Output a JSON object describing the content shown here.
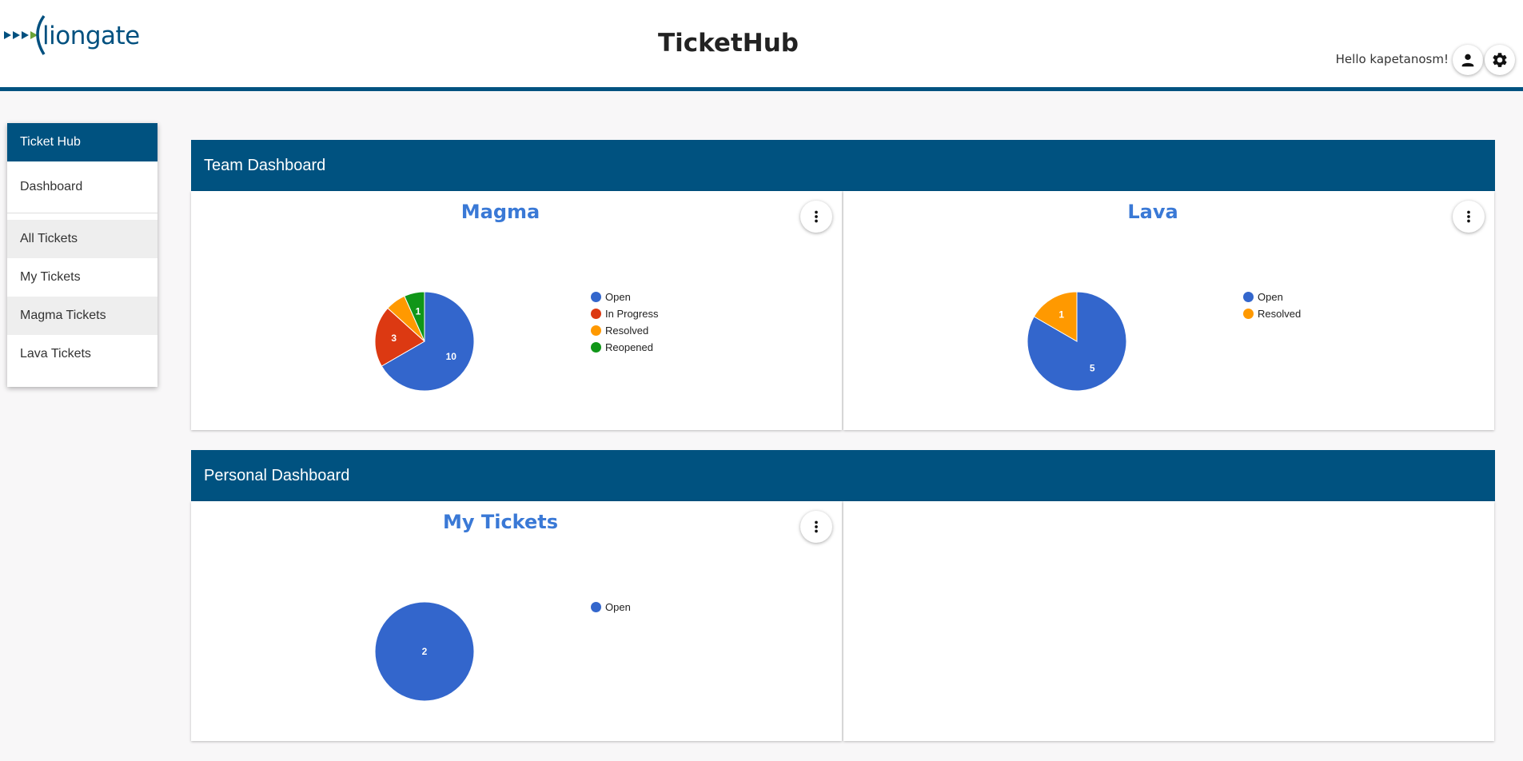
{
  "header": {
    "logo_text": "liongate",
    "app_title": "TicketHub",
    "greeting": "Hello kapetanosm!",
    "icons": [
      "user-icon",
      "gear-icon"
    ]
  },
  "sidebar": {
    "title": "Ticket Hub",
    "items": [
      {
        "label": "Dashboard"
      },
      {
        "label": "All Tickets"
      },
      {
        "label": "My Tickets"
      },
      {
        "label": "Magma Tickets"
      },
      {
        "label": "Lava Tickets"
      }
    ]
  },
  "sections": {
    "team": {
      "title": "Team Dashboard"
    },
    "personal": {
      "title": "Personal Dashboard"
    }
  },
  "colors": {
    "brand": "#005280",
    "open": "#3366cc",
    "in_progress": "#dc3912",
    "resolved": "#ff9900",
    "reopened": "#109618",
    "card_title": "#3a79d6"
  },
  "chart_data": [
    {
      "type": "pie",
      "title": "Magma",
      "categories": [
        "Open",
        "In Progress",
        "Resolved",
        "Reopened"
      ],
      "values": [
        10,
        3,
        1,
        1
      ],
      "colors": [
        "#3366cc",
        "#dc3912",
        "#ff9900",
        "#109618"
      ],
      "slice_labels": [
        "10",
        "3",
        "",
        "1"
      ],
      "legend": "right"
    },
    {
      "type": "pie",
      "title": "Lava",
      "categories": [
        "Open",
        "Resolved"
      ],
      "values": [
        5,
        1
      ],
      "colors": [
        "#3366cc",
        "#ff9900"
      ],
      "slice_labels": [
        "5",
        "1"
      ],
      "legend": "right"
    },
    {
      "type": "pie",
      "title": "My Tickets",
      "categories": [
        "Open"
      ],
      "values": [
        2
      ],
      "colors": [
        "#3366cc"
      ],
      "slice_labels": [
        "2"
      ],
      "legend": "right"
    }
  ]
}
